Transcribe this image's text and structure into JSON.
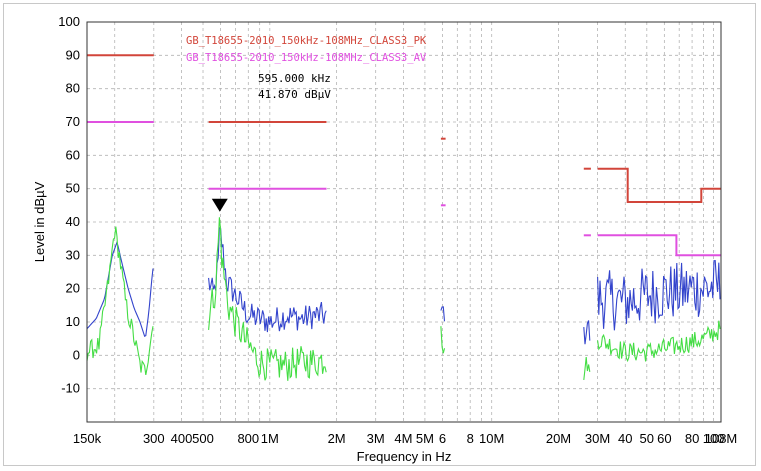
{
  "chart_data": {
    "type": "line",
    "xlabel": "Frequency in Hz",
    "ylabel": "Level in dBµV",
    "xscale": "log",
    "xlim": [
      150000,
      108000000
    ],
    "ylim": [
      -20,
      100
    ],
    "y_ticks": [
      -10,
      0,
      10,
      20,
      30,
      40,
      50,
      60,
      70,
      80,
      90,
      100
    ],
    "x_tick_labels": [
      {
        "f": 150000,
        "label": "150k"
      },
      {
        "f": 300000,
        "label": "300"
      },
      {
        "f": 400000,
        "label": "400"
      },
      {
        "f": 500000,
        "label": "500"
      },
      {
        "f": 800000,
        "label": "800"
      },
      {
        "f": 1000000,
        "label": "1M"
      },
      {
        "f": 2000000,
        "label": "2M"
      },
      {
        "f": 3000000,
        "label": "3M"
      },
      {
        "f": 4000000,
        "label": "4M"
      },
      {
        "f": 5000000,
        "label": "5M"
      },
      {
        "f": 6000000,
        "label": "6"
      },
      {
        "f": 8000000,
        "label": "8"
      },
      {
        "f": 10000000,
        "label": "10M"
      },
      {
        "f": 20000000,
        "label": "20M"
      },
      {
        "f": 30000000,
        "label": "30M"
      },
      {
        "f": 40000000,
        "label": "40"
      },
      {
        "f": 50000000,
        "label": "50"
      },
      {
        "f": 60000000,
        "label": "60"
      },
      {
        "f": 80000000,
        "label": "80"
      },
      {
        "f": 100000000,
        "label": "100"
      },
      {
        "f": 108000000,
        "label": "108M"
      }
    ],
    "grid": true,
    "legend_position": "top-center",
    "limits": [
      {
        "name": "GB_T18655-2010_150kHz-108MHz_CLASS3_PK",
        "color": "#d2453a",
        "segments": [
          [
            [
              150000,
              90
            ],
            [
              300000,
              90
            ]
          ],
          [
            [
              530000,
              70
            ],
            [
              1800000,
              70
            ]
          ],
          [
            [
              5900000,
              65
            ],
            [
              6200000,
              65
            ]
          ],
          [
            [
              26000000,
              56
            ],
            [
              28000000,
              56
            ]
          ],
          [
            [
              30000000,
              56
            ],
            [
              41000000,
              56
            ],
            [
              41000000,
              46
            ],
            [
              88000000,
              46
            ],
            [
              88000000,
              50
            ],
            [
              108000000,
              50
            ]
          ]
        ]
      },
      {
        "name": "GB_T18655-2010_150kHz-108MHz_CLASS3_AV",
        "color": "#e050e0",
        "segments": [
          [
            [
              150000,
              70
            ],
            [
              300000,
              70
            ]
          ],
          [
            [
              530000,
              50
            ],
            [
              1800000,
              50
            ]
          ],
          [
            [
              5900000,
              45
            ],
            [
              6200000,
              45
            ]
          ],
          [
            [
              26000000,
              36
            ],
            [
              28000000,
              36
            ]
          ],
          [
            [
              30000000,
              36
            ],
            [
              68000000,
              36
            ],
            [
              68000000,
              30
            ],
            [
              108000000,
              30
            ]
          ]
        ]
      }
    ],
    "series": [
      {
        "color": "#3344cc",
        "bands": [
          {
            "points": [
              [
                150000,
                8
              ],
              [
                165000,
                11
              ],
              [
                180000,
                17
              ],
              [
                195000,
                30
              ],
              [
                205000,
                34
              ],
              [
                215000,
                28
              ],
              [
                230000,
                20
              ],
              [
                245000,
                14
              ],
              [
                260000,
                10
              ],
              [
                275000,
                5
              ],
              [
                285000,
                13
              ],
              [
                295000,
                24
              ],
              [
                300000,
                28
              ]
            ]
          },
          {
            "points": [
              [
                530000,
                22
              ],
              [
                560000,
                18
              ],
              [
                585000,
                27
              ],
              [
                595000,
                38
              ],
              [
                610000,
                33
              ],
              [
                640000,
                22
              ],
              [
                700000,
                18
              ],
              [
                800000,
                12
              ],
              [
                900000,
                11
              ],
              [
                1000000,
                10
              ],
              [
                1200000,
                12
              ],
              [
                1400000,
                11
              ],
              [
                1600000,
                12
              ],
              [
                1800000,
                12
              ]
            ],
            "spread": 4
          },
          {
            "points": [
              [
                5900000,
                12
              ],
              [
                6000000,
                15
              ],
              [
                6200000,
                10
              ]
            ],
            "spread": 2
          },
          {
            "points": [
              [
                26000000,
                5
              ],
              [
                27000000,
                10
              ],
              [
                28000000,
                4
              ]
            ],
            "spread": 4
          },
          {
            "points": [
              [
                30000000,
                17
              ],
              [
                40000000,
                16
              ],
              [
                50000000,
                18
              ],
              [
                60000000,
                19
              ],
              [
                70000000,
                19
              ],
              [
                80000000,
                20
              ],
              [
                90000000,
                20
              ],
              [
                108000000,
                21
              ]
            ],
            "spread": 9
          }
        ]
      },
      {
        "color": "#44dd44",
        "bands": [
          {
            "points": [
              [
                150000,
                1
              ],
              [
                170000,
                3
              ],
              [
                190000,
                25
              ],
              [
                200000,
                38
              ],
              [
                210000,
                30
              ],
              [
                225000,
                15
              ],
              [
                245000,
                5
              ],
              [
                260000,
                -3
              ],
              [
                275000,
                -5
              ],
              [
                290000,
                5
              ],
              [
                300000,
                10
              ]
            ],
            "spread": 3
          },
          {
            "points": [
              [
                530000,
                12
              ],
              [
                570000,
                20
              ],
              [
                595000,
                41.87
              ],
              [
                610000,
                28
              ],
              [
                650000,
                15
              ],
              [
                700000,
                10
              ],
              [
                800000,
                3
              ],
              [
                900000,
                -2
              ],
              [
                1000000,
                -3
              ],
              [
                1200000,
                -3
              ],
              [
                1400000,
                -2
              ],
              [
                1600000,
                -2
              ],
              [
                1800000,
                -1
              ]
            ],
            "spread": 5
          },
          {
            "points": [
              [
                5900000,
                10
              ],
              [
                6000000,
                2
              ],
              [
                6200000,
                0
              ]
            ],
            "spread": 2
          },
          {
            "points": [
              [
                26000000,
                -5
              ],
              [
                27000000,
                -2
              ],
              [
                28000000,
                -8
              ]
            ],
            "spread": 3
          },
          {
            "points": [
              [
                30000000,
                5
              ],
              [
                40000000,
                1
              ],
              [
                50000000,
                1
              ],
              [
                60000000,
                2
              ],
              [
                70000000,
                3
              ],
              [
                80000000,
                4
              ],
              [
                90000000,
                5
              ],
              [
                108000000,
                8
              ]
            ],
            "spread": 3
          }
        ]
      }
    ],
    "marker": {
      "frequency_text": "595.000 kHz",
      "level_text": "41.870 dBµV",
      "f": 595000,
      "level": 41.87
    }
  }
}
